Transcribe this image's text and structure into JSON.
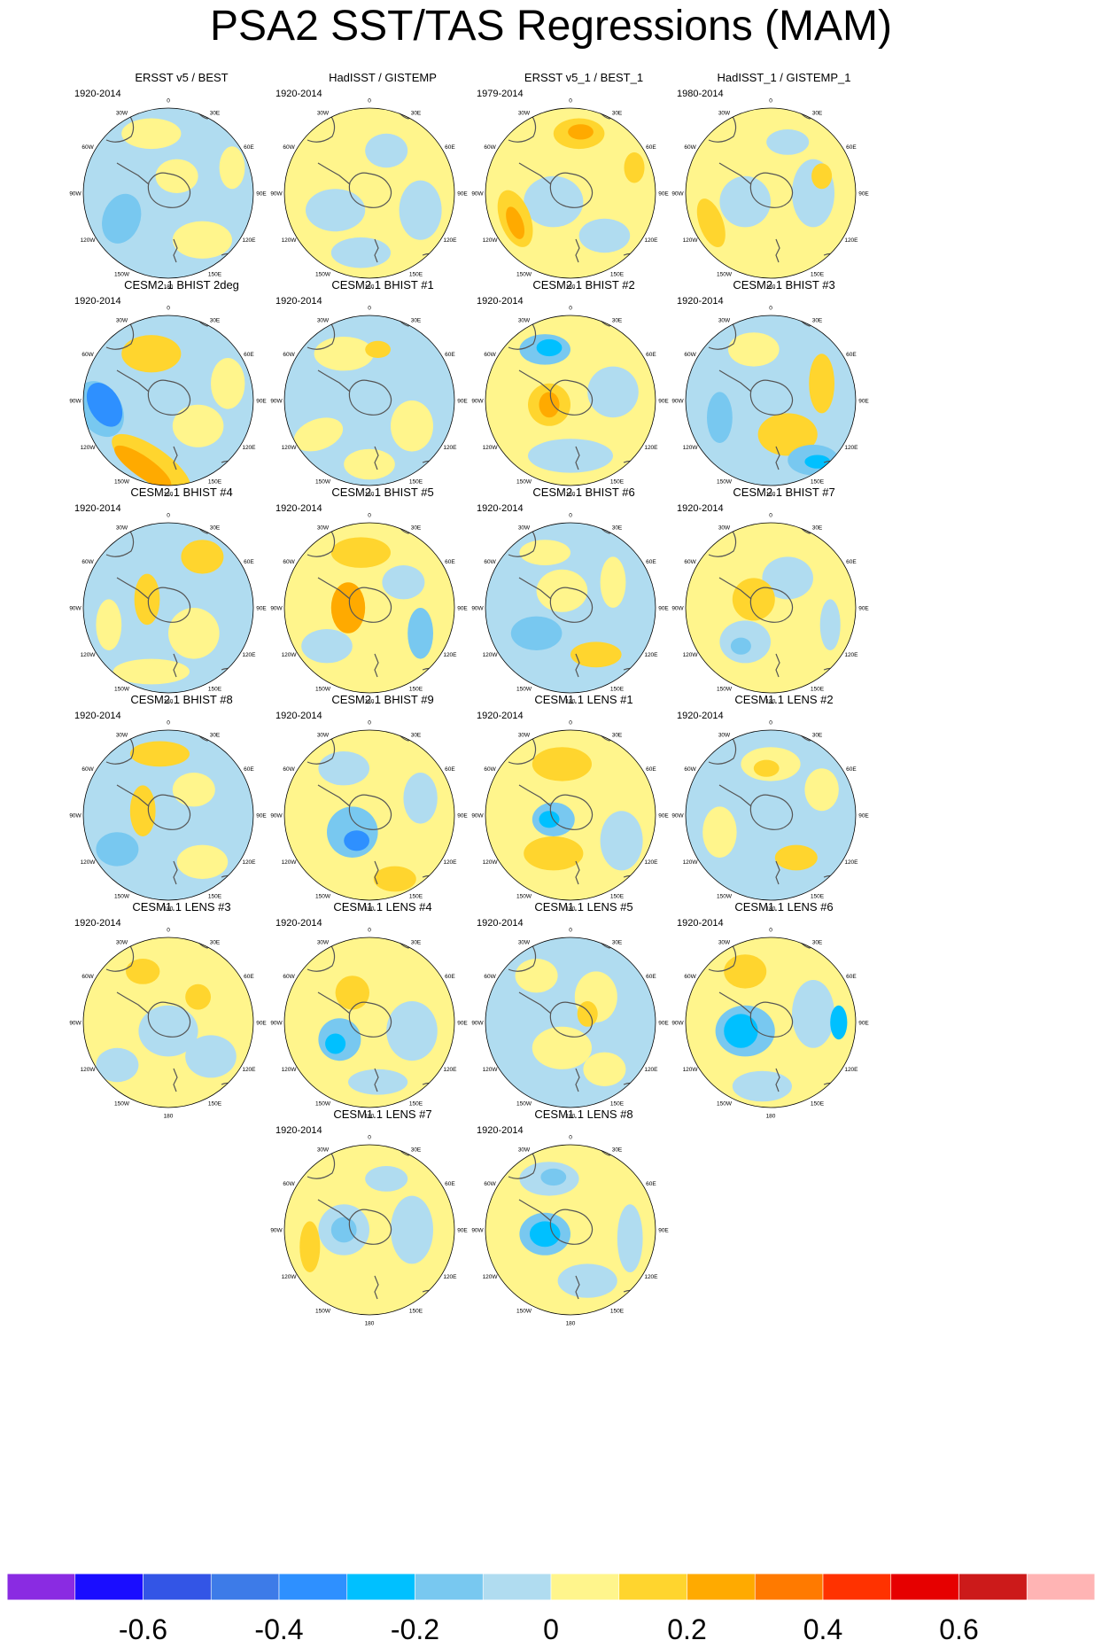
{
  "title": "PSA2 SST/TAS Regressions (MAM)",
  "longitude_labels": {
    "top": "0",
    "top_right": "30E",
    "right_upper": "60E",
    "right": "90E",
    "right_lower": "120E",
    "bottom_right": "150E",
    "bottom": "180",
    "bottom_left": "150W",
    "left_lower": "120W",
    "left": "90W",
    "left_upper": "60W",
    "top_left": "30W"
  },
  "panels": [
    {
      "title": "ERSST v5 / BEST",
      "years": "1920-2014",
      "pattern": "erss"
    },
    {
      "title": "HadISST / GISTEMP",
      "years": "1920-2014",
      "pattern": "had"
    },
    {
      "title": "ERSST v5_1 / BEST_1",
      "years": "1979-2014",
      "pattern": "ersst1"
    },
    {
      "title": "HadISST_1 / GISTEMP_1",
      "years": "1980-2014",
      "pattern": "had1"
    },
    {
      "title": "CESM2.1 BHIST 2deg",
      "years": "1920-2014",
      "pattern": "b2deg"
    },
    {
      "title": "CESM2.1 BHIST #1",
      "years": "1920-2014",
      "pattern": "m1"
    },
    {
      "title": "CESM2.1 BHIST #2",
      "years": "1920-2014",
      "pattern": "m2"
    },
    {
      "title": "CESM2.1 BHIST #3",
      "years": "1920-2014",
      "pattern": "m3"
    },
    {
      "title": "CESM2.1 BHIST #4",
      "years": "1920-2014",
      "pattern": "m4"
    },
    {
      "title": "CESM2.1 BHIST #5",
      "years": "1920-2014",
      "pattern": "m5"
    },
    {
      "title": "CESM2.1 BHIST #6",
      "years": "1920-2014",
      "pattern": "m6"
    },
    {
      "title": "CESM2.1 BHIST #7",
      "years": "1920-2014",
      "pattern": "m7"
    },
    {
      "title": "CESM2.1 BHIST #8",
      "years": "1920-2014",
      "pattern": "m8"
    },
    {
      "title": "CESM2.1 BHIST #9",
      "years": "1920-2014",
      "pattern": "m9"
    },
    {
      "title": "CESM1.1 LENS #1",
      "years": "1920-2014",
      "pattern": "l1"
    },
    {
      "title": "CESM1.1 LENS #2",
      "years": "1920-2014",
      "pattern": "l2"
    },
    {
      "title": "CESM1.1 LENS #3",
      "years": "1920-2014",
      "pattern": "l3"
    },
    {
      "title": "CESM1.1 LENS #4",
      "years": "1920-2014",
      "pattern": "l4"
    },
    {
      "title": "CESM1.1 LENS #5",
      "years": "1920-2014",
      "pattern": "l5"
    },
    {
      "title": "CESM1.1 LENS #6",
      "years": "1920-2014",
      "pattern": "l6"
    },
    {
      "title": "CESM1.1 LENS #7",
      "years": "1920-2014",
      "pattern": "l7"
    },
    {
      "title": "CESM1.1 LENS #8",
      "years": "1920-2014",
      "pattern": "l8"
    }
  ],
  "colorbar": {
    "labels": [
      "-0.6",
      "-0.4",
      "-0.2",
      "0",
      "0.2",
      "0.4",
      "0.6"
    ],
    "colors": [
      "#8a2be2",
      "#1a0dff",
      "#3355e6",
      "#3d7be8",
      "#2e90ff",
      "#00c0ff",
      "#78c8f0",
      "#b0dcf0",
      "#fff58c",
      "#ffd52e",
      "#ffaa00",
      "#ff7a00",
      "#ff3200",
      "#e60000",
      "#cc1a1a",
      "#ffb4b4"
    ]
  },
  "colors": {
    "land_outline": "#555555",
    "background_blue": "#b0dcf0",
    "background_yellow": "#fff58c"
  }
}
